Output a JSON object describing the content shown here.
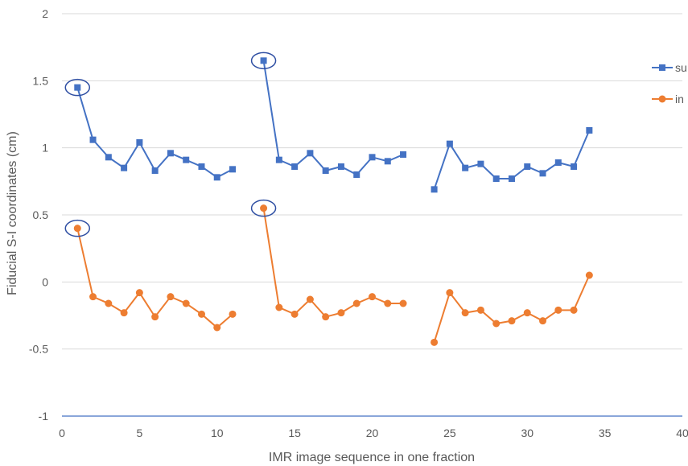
{
  "chart_data": {
    "type": "line",
    "title": "",
    "xlabel": "IMR image sequence in one fraction",
    "ylabel": "Fiducial S-I coordinates (cm)",
    "xlim": [
      0,
      40
    ],
    "ylim": [
      -1,
      2
    ],
    "x_ticks": [
      "0",
      "5",
      "10",
      "15",
      "20",
      "25",
      "30",
      "35",
      "40"
    ],
    "y_ticks": [
      "-1",
      "-0.5",
      "0",
      "0.5",
      "1",
      "1.5",
      "2"
    ],
    "grid": "horizontal",
    "legend_position": "right",
    "series": [
      {
        "name": "su",
        "color": "#4472c4",
        "marker": "square",
        "segments": [
          [
            [
              1,
              1.45
            ],
            [
              2,
              1.06
            ],
            [
              3,
              0.93
            ],
            [
              4,
              0.85
            ],
            [
              5,
              1.04
            ],
            [
              6,
              0.83
            ],
            [
              7,
              0.96
            ],
            [
              8,
              0.91
            ],
            [
              9,
              0.86
            ],
            [
              10,
              0.78
            ],
            [
              11,
              0.84
            ]
          ],
          [
            [
              13,
              1.65
            ],
            [
              14,
              0.91
            ],
            [
              15,
              0.86
            ],
            [
              16,
              0.96
            ],
            [
              17,
              0.83
            ],
            [
              18,
              0.86
            ],
            [
              19,
              0.8
            ],
            [
              20,
              0.93
            ],
            [
              21,
              0.9
            ],
            [
              22,
              0.95
            ]
          ],
          [
            [
              24,
              0.69
            ],
            [
              25,
              1.03
            ],
            [
              26,
              0.85
            ],
            [
              27,
              0.88
            ],
            [
              28,
              0.77
            ],
            [
              29,
              0.77
            ],
            [
              30,
              0.86
            ],
            [
              31,
              0.81
            ],
            [
              32,
              0.89
            ],
            [
              33,
              0.86
            ],
            [
              34,
              1.13
            ]
          ]
        ]
      },
      {
        "name": "in",
        "color": "#ed7d31",
        "marker": "circle",
        "segments": [
          [
            [
              1,
              0.4
            ],
            [
              2,
              -0.11
            ],
            [
              3,
              -0.16
            ],
            [
              4,
              -0.23
            ],
            [
              5,
              -0.08
            ],
            [
              6,
              -0.26
            ],
            [
              7,
              -0.11
            ],
            [
              8,
              -0.16
            ],
            [
              9,
              -0.24
            ],
            [
              10,
              -0.34
            ],
            [
              11,
              -0.24
            ]
          ],
          [
            [
              13,
              0.55
            ],
            [
              14,
              -0.19
            ],
            [
              15,
              -0.24
            ],
            [
              16,
              -0.13
            ],
            [
              17,
              -0.26
            ],
            [
              18,
              -0.23
            ],
            [
              19,
              -0.16
            ],
            [
              20,
              -0.11
            ],
            [
              21,
              -0.16
            ],
            [
              22,
              -0.16
            ]
          ],
          [
            [
              24,
              -0.45
            ],
            [
              25,
              -0.08
            ],
            [
              26,
              -0.23
            ],
            [
              27,
              -0.21
            ],
            [
              28,
              -0.31
            ],
            [
              29,
              -0.29
            ],
            [
              30,
              -0.23
            ],
            [
              31,
              -0.29
            ],
            [
              32,
              -0.21
            ],
            [
              33,
              -0.21
            ],
            [
              34,
              0.05
            ]
          ]
        ]
      }
    ],
    "highlighted_points": [
      {
        "x": 1,
        "y": 1.45
      },
      {
        "x": 13,
        "y": 1.65
      },
      {
        "x": 1,
        "y": 0.4
      },
      {
        "x": 13,
        "y": 0.55
      }
    ],
    "highlight_color": "#2f4fa3"
  }
}
